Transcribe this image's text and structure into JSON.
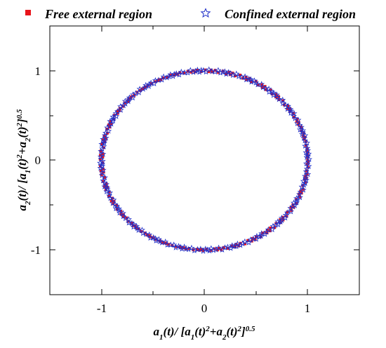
{
  "chart_data": {
    "type": "scatter",
    "title": "",
    "xlabel": {
      "parts": [
        "a",
        "1",
        "(t)/ [a",
        "1",
        "(t)",
        "2",
        "+a",
        "2",
        "(t)",
        "2",
        "]",
        "0.5"
      ]
    },
    "ylabel": {
      "parts": [
        "a",
        "2",
        "(t)/ [a",
        "1",
        "(t)",
        "2",
        "+a",
        "2",
        "(t)",
        "2",
        "]",
        "0.5"
      ]
    },
    "xlim": [
      -1.5,
      1.5
    ],
    "ylim": [
      -1.5,
      1.5
    ],
    "xticks": [
      -1,
      0,
      1
    ],
    "yticks": [
      -1,
      0,
      1
    ],
    "xtick_labels": [
      "-1",
      "0",
      "1"
    ],
    "ytick_labels": [
      "-1",
      "0",
      "1"
    ],
    "grid": false,
    "legend_position": "top",
    "series": [
      {
        "name": "Free external region",
        "marker": "square",
        "color": "#e8141b",
        "shape": "unit circle x = cos(θ), y = sin(θ)",
        "point_count": 220,
        "radius": 1.0
      },
      {
        "name": "Confined external region",
        "marker": "star-open",
        "color": "#2030c8",
        "shape": "unit circle x = cos(θ), y = sin(θ)",
        "point_count": 260,
        "radius": 1.0
      }
    ]
  }
}
